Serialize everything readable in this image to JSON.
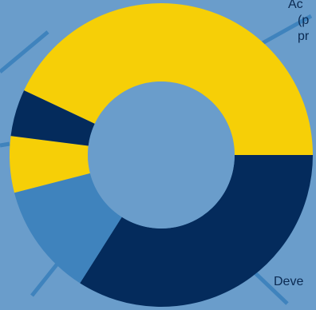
{
  "chart_data": {
    "type": "pie",
    "subtype": "donut",
    "slices": [
      {
        "label": "Ac",
        "value": 43,
        "color": "#f6cf07"
      },
      {
        "label": "Deve",
        "value": 34,
        "color": "#042b5c"
      },
      {
        "label": "",
        "value": 12,
        "color": "#3f83bd"
      },
      {
        "label": "",
        "value": 6,
        "color": "#f6cf07"
      },
      {
        "label": "",
        "value": 5,
        "color": "#042b5c"
      }
    ],
    "background": "#6a9dcb",
    "hole_color": "#6a9dcb",
    "leader_color": "#3f83bd"
  },
  "labels": {
    "top_right_line1": "Ac",
    "top_right_line2": "(p",
    "top_right_line3": "pr",
    "bottom_right": "Deve"
  }
}
